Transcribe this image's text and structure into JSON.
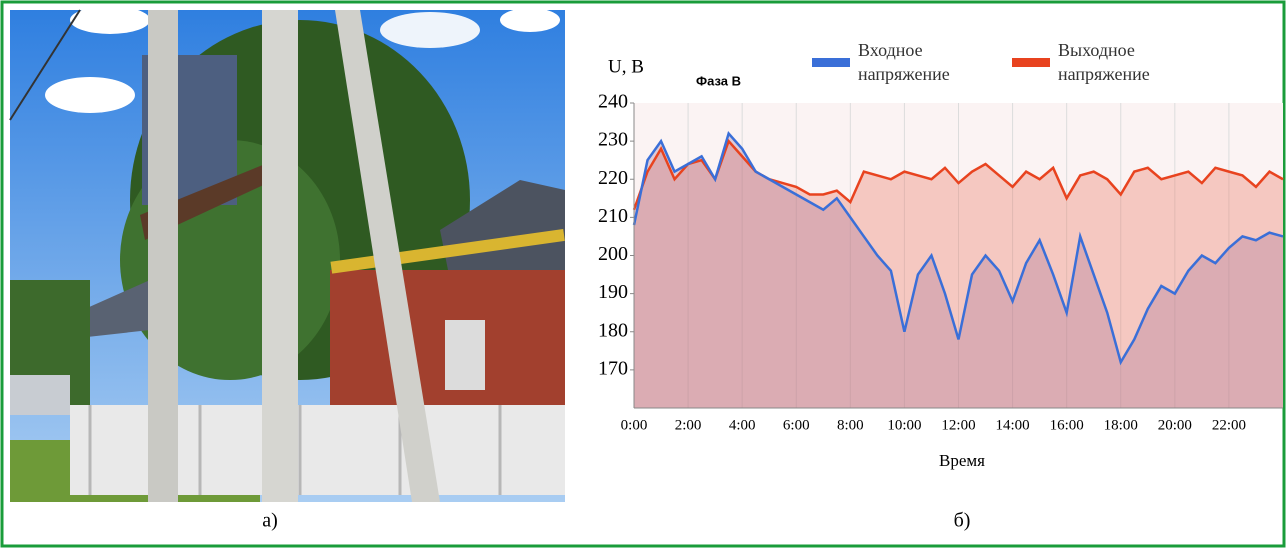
{
  "chart_data": {
    "type": "line",
    "y_label": "U, В",
    "subtitle": "Фаза В",
    "x_label": "Время",
    "x": [
      0,
      0.5,
      1,
      1.5,
      2,
      2.5,
      3,
      3.5,
      4,
      4.5,
      5,
      5.5,
      6,
      6.5,
      7,
      7.5,
      8,
      8.5,
      9,
      9.5,
      10,
      10.5,
      11,
      11.5,
      12,
      12.5,
      13,
      13.5,
      14,
      14.5,
      15,
      15.5,
      16,
      16.5,
      17,
      17.5,
      18,
      18.5,
      19,
      19.5,
      20,
      20.5,
      21,
      21.5,
      22,
      22.5,
      23,
      23.5,
      24
    ],
    "series": [
      {
        "name": "Выходное напряжение",
        "color": "#e8431f",
        "fill": "rgba(235,120,100,0.35)",
        "values": [
          212,
          222,
          228,
          220,
          224,
          225,
          220,
          230,
          226,
          222,
          220,
          219,
          218,
          216,
          216,
          217,
          214,
          222,
          221,
          220,
          222,
          221,
          220,
          223,
          219,
          222,
          224,
          221,
          218,
          222,
          220,
          223,
          215,
          221,
          222,
          220,
          216,
          222,
          223,
          220,
          221,
          222,
          219,
          223,
          222,
          221,
          218,
          222,
          220
        ]
      },
      {
        "name": "Входное напряжение",
        "color": "#3a6fd8",
        "fill": "rgba(160,110,150,0.3)",
        "values": [
          208,
          225,
          230,
          222,
          224,
          226,
          220,
          232,
          228,
          222,
          220,
          218,
          216,
          214,
          212,
          215,
          210,
          205,
          200,
          196,
          180,
          195,
          200,
          190,
          178,
          195,
          200,
          196,
          188,
          198,
          204,
          195,
          185,
          205,
          195,
          185,
          172,
          178,
          186,
          192,
          190,
          196,
          200,
          198,
          202,
          205,
          204,
          206,
          205
        ]
      }
    ],
    "xlim": [
      0,
      24
    ],
    "xticks": [
      {
        "value": 0,
        "label": "0:00"
      },
      {
        "value": 2,
        "label": "2:00"
      },
      {
        "value": 4,
        "label": "4:00"
      },
      {
        "value": 6,
        "label": "6:00"
      },
      {
        "value": 8,
        "label": "8:00"
      },
      {
        "value": 10,
        "label": "10:00"
      },
      {
        "value": 12,
        "label": "12:00"
      },
      {
        "value": 14,
        "label": "14:00"
      },
      {
        "value": 16,
        "label": "16:00"
      },
      {
        "value": 18,
        "label": "18:00"
      },
      {
        "value": 20,
        "label": "20:00"
      },
      {
        "value": 22,
        "label": "22:00"
      }
    ],
    "ylim": [
      160,
      240
    ],
    "yticks": [
      170,
      180,
      190,
      200,
      210,
      220,
      230,
      240
    ],
    "grid": true
  },
  "captions": {
    "left": "а)",
    "right": "б)"
  }
}
